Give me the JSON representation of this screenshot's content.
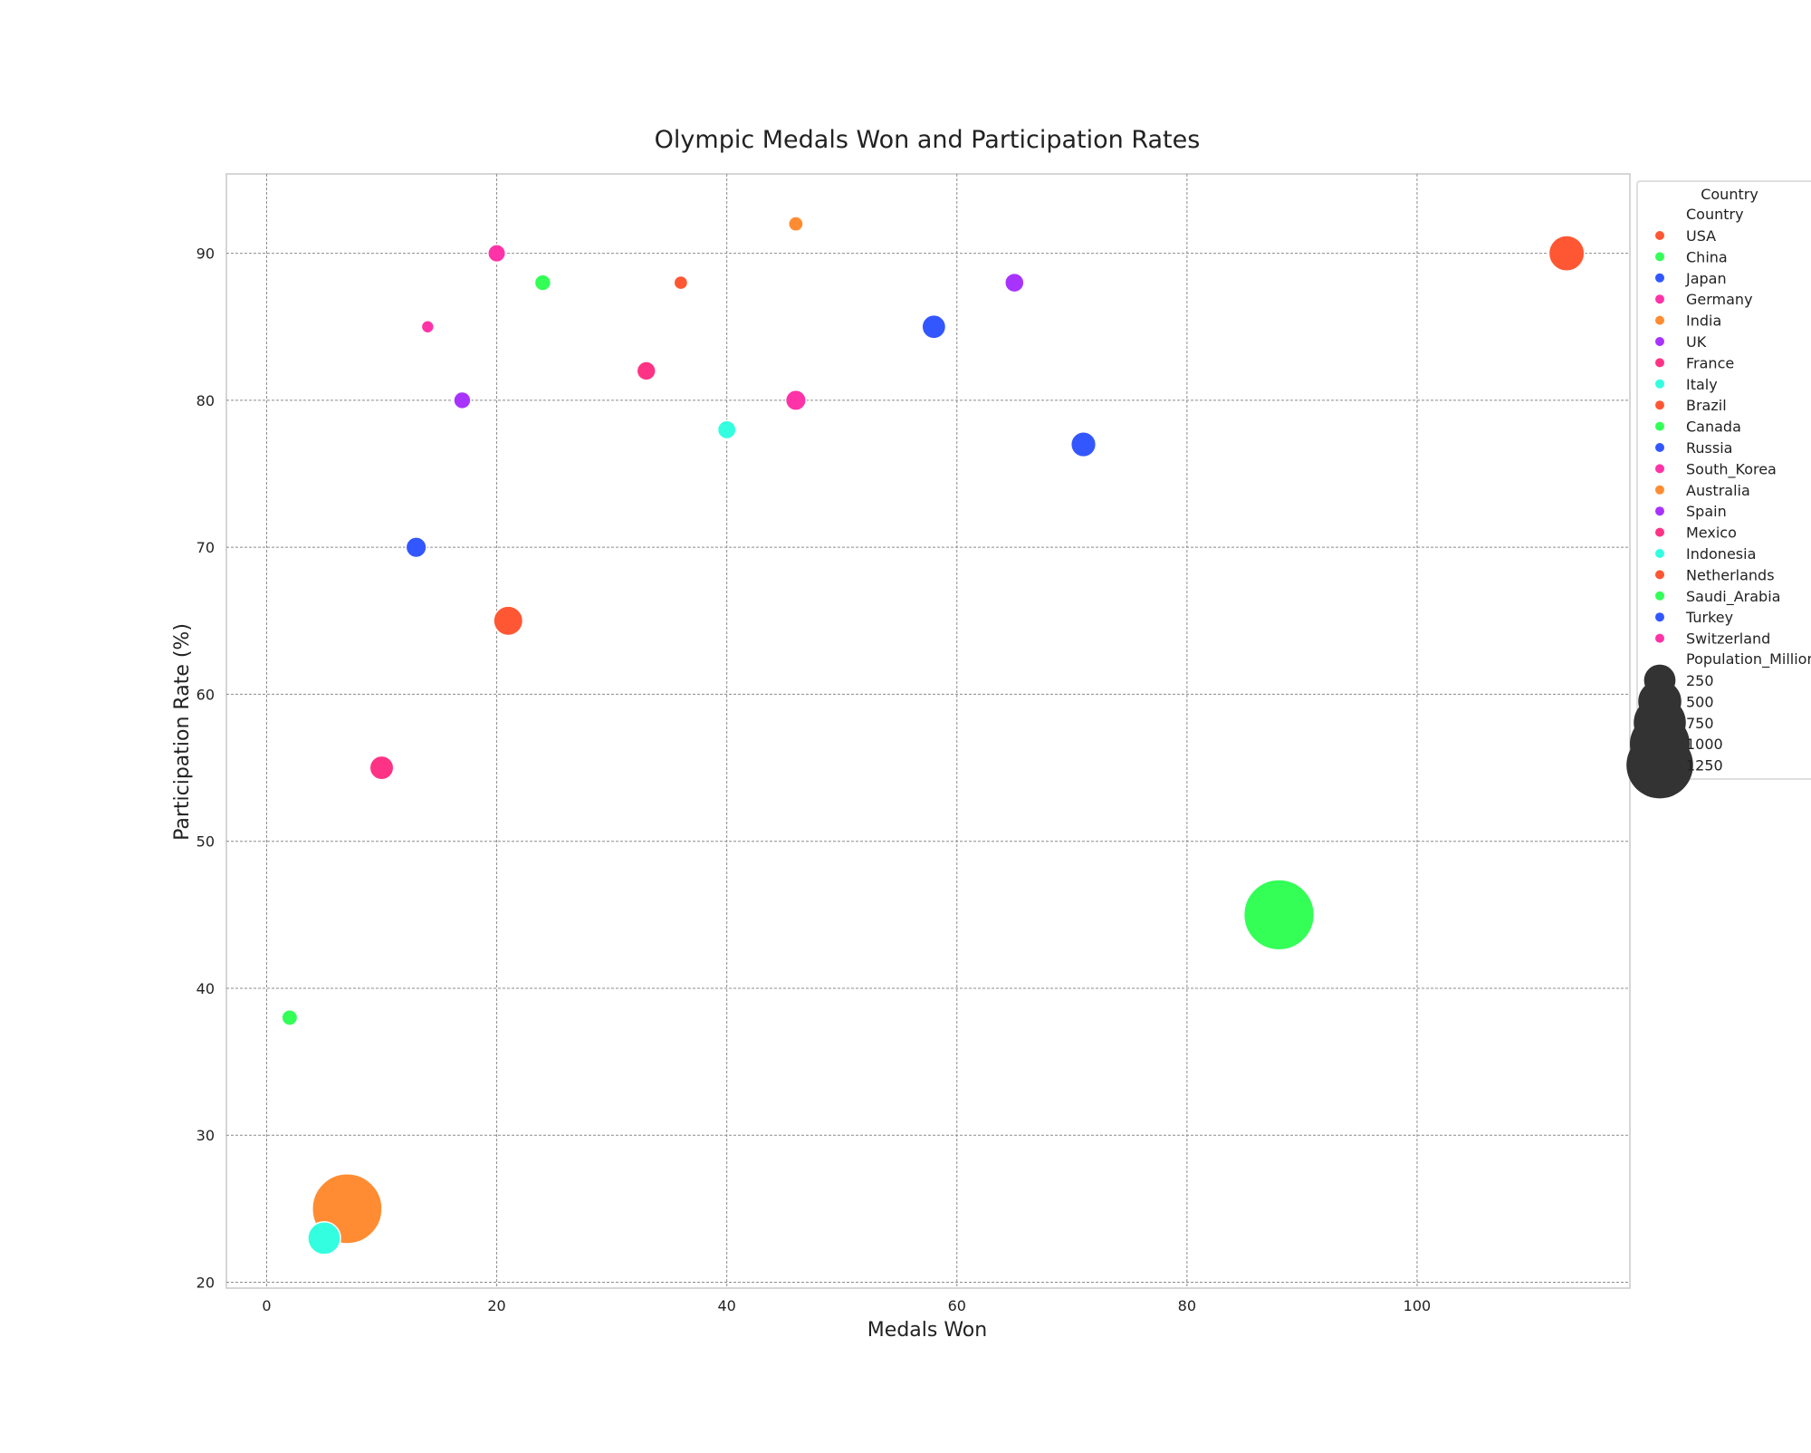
{
  "chart_data": {
    "type": "scatter",
    "title": "Olympic Medals Won and Participation Rates",
    "xlabel": "Medals Won",
    "ylabel": "Participation Rate (%)",
    "xlim": [
      -3.5,
      118.5
    ],
    "ylim": [
      19.6,
      95.4
    ],
    "xticks": [
      0,
      20,
      40,
      60,
      80,
      100
    ],
    "yticks": [
      20,
      30,
      40,
      50,
      60,
      70,
      80,
      90
    ],
    "grid": true,
    "legend_placement": "outside-right",
    "legend": {
      "title": "Country",
      "hue_title": "Country",
      "size_title": "Population_Millions",
      "size_entries": [
        250,
        500,
        750,
        1000,
        1250
      ]
    },
    "points": [
      {
        "country": "USA",
        "x": 113,
        "y": 90,
        "population": 331,
        "color": "#ff5733"
      },
      {
        "country": "China",
        "x": 88,
        "y": 45,
        "population": 1400,
        "color": "#33ff57"
      },
      {
        "country": "Japan",
        "x": 58,
        "y": 85,
        "population": 126,
        "color": "#3357ff"
      },
      {
        "country": "Germany",
        "x": 46,
        "y": 80,
        "population": 83,
        "color": "#ff33a8"
      },
      {
        "country": "India",
        "x": 7,
        "y": 25,
        "population": 1380,
        "color": "#ff8c33"
      },
      {
        "country": "UK",
        "x": 65,
        "y": 88,
        "population": 67,
        "color": "#a833ff"
      },
      {
        "country": "France",
        "x": 33,
        "y": 82,
        "population": 65,
        "color": "#ff3385"
      },
      {
        "country": "Italy",
        "x": 40,
        "y": 78,
        "population": 60,
        "color": "#33ffe0"
      },
      {
        "country": "Brazil",
        "x": 21,
        "y": 65,
        "population": 212,
        "color": "#ff5733"
      },
      {
        "country": "Canada",
        "x": 24,
        "y": 88,
        "population": 38,
        "color": "#33ff57"
      },
      {
        "country": "Russia",
        "x": 71,
        "y": 77,
        "population": 144,
        "color": "#3357ff"
      },
      {
        "country": "South_Korea",
        "x": 20,
        "y": 90,
        "population": 52,
        "color": "#ff33a8"
      },
      {
        "country": "Australia",
        "x": 46,
        "y": 92,
        "population": 25,
        "color": "#ff8c33"
      },
      {
        "country": "Spain",
        "x": 17,
        "y": 80,
        "population": 47,
        "color": "#a833ff"
      },
      {
        "country": "Mexico",
        "x": 10,
        "y": 55,
        "population": 128,
        "color": "#ff3385"
      },
      {
        "country": "Indonesia",
        "x": 5,
        "y": 23,
        "population": 273,
        "color": "#33ffe0"
      },
      {
        "country": "Netherlands",
        "x": 36,
        "y": 88,
        "population": 17,
        "color": "#ff5733"
      },
      {
        "country": "Saudi_Arabia",
        "x": 2,
        "y": 38,
        "population": 34,
        "color": "#33ff57"
      },
      {
        "country": "Turkey",
        "x": 13,
        "y": 70,
        "population": 84,
        "color": "#3357ff"
      },
      {
        "country": "Switzerland",
        "x": 14,
        "y": 85,
        "population": 8,
        "color": "#ff33a8"
      }
    ]
  }
}
